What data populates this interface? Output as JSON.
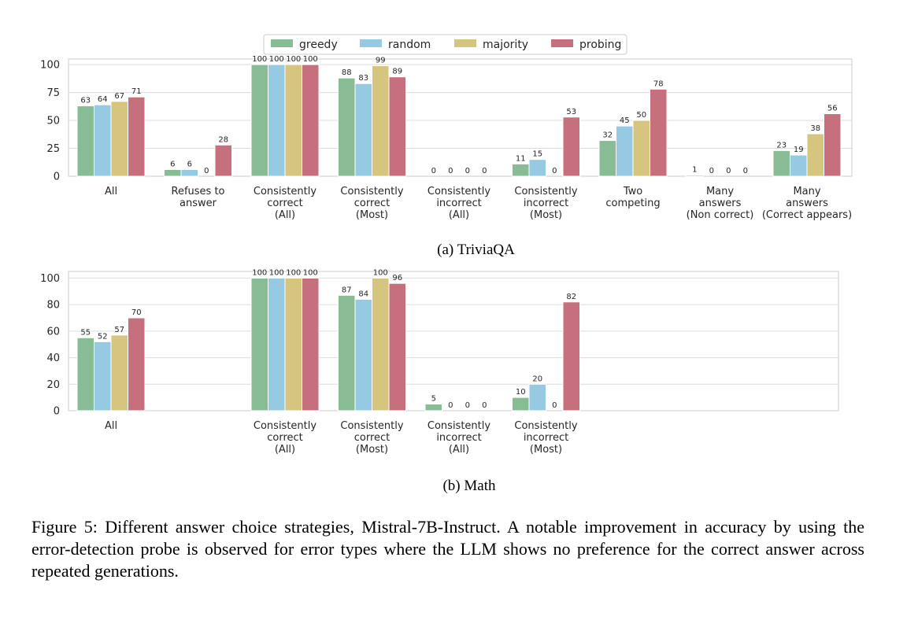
{
  "legend": {
    "entries": [
      {
        "label": "greedy",
        "color": "#87bc94"
      },
      {
        "label": "random",
        "color": "#96cae3"
      },
      {
        "label": "majority",
        "color": "#d5c57f"
      },
      {
        "label": "probing",
        "color": "#c6707d"
      }
    ]
  },
  "chart_data": [
    {
      "type": "bar",
      "title": "(a) TriviaQA",
      "xlabel": "",
      "ylabel": "",
      "ylim": [
        0,
        105
      ],
      "yticks": [
        0,
        25,
        50,
        75,
        100
      ],
      "grid": true,
      "legend_position": "top-center",
      "categories": [
        [
          "All"
        ],
        [
          "Refuses to",
          "answer"
        ],
        [
          "Consistently",
          "correct",
          "(All)"
        ],
        [
          "Consistently",
          "correct",
          "(Most)"
        ],
        [
          "Consistently",
          "incorrect",
          "(All)"
        ],
        [
          "Consistently",
          "incorrect",
          "(Most)"
        ],
        [
          "Two",
          "competing"
        ],
        [
          "Many",
          "answers",
          "(Non correct)"
        ],
        [
          "Many",
          "answers",
          "(Correct appears)"
        ]
      ],
      "series": [
        {
          "name": "greedy",
          "values": [
            63,
            6,
            100,
            88,
            0,
            11,
            32,
            1,
            23
          ]
        },
        {
          "name": "random",
          "values": [
            64,
            6,
            100,
            83,
            0,
            15,
            45,
            0,
            19
          ]
        },
        {
          "name": "majority",
          "values": [
            67,
            0,
            100,
            99,
            0,
            0,
            50,
            0,
            38
          ]
        },
        {
          "name": "probing",
          "values": [
            71,
            28,
            100,
            89,
            0,
            53,
            78,
            0,
            56
          ]
        }
      ]
    },
    {
      "type": "bar",
      "title": "(b) Math",
      "xlabel": "",
      "ylabel": "",
      "ylim": [
        0,
        105
      ],
      "yticks": [
        0,
        20,
        40,
        60,
        80,
        100
      ],
      "grid": true,
      "categories": [
        [
          "All"
        ],
        [],
        [
          "Consistently",
          "correct",
          "(All)"
        ],
        [
          "Consistently",
          "correct",
          "(Most)"
        ],
        [
          "Consistently",
          "incorrect",
          "(All)"
        ],
        [
          "Consistently",
          "incorrect",
          "(Most)"
        ],
        [],
        [],
        []
      ],
      "series": [
        {
          "name": "greedy",
          "values": [
            55,
            null,
            100,
            87,
            5,
            10,
            null,
            null,
            null
          ]
        },
        {
          "name": "random",
          "values": [
            52,
            null,
            100,
            84,
            0,
            20,
            null,
            null,
            null
          ]
        },
        {
          "name": "majority",
          "values": [
            57,
            null,
            100,
            100,
            0,
            0,
            null,
            null,
            null
          ]
        },
        {
          "name": "probing",
          "values": [
            70,
            null,
            100,
            96,
            0,
            82,
            null,
            null,
            null
          ]
        }
      ]
    }
  ],
  "caption": "Figure 5: Different answer choice strategies, Mistral-7B-Instruct. A notable improvement in accuracy by using the error-detection probe is observed for error types where the LLM shows no preference for the correct answer across repeated generations."
}
